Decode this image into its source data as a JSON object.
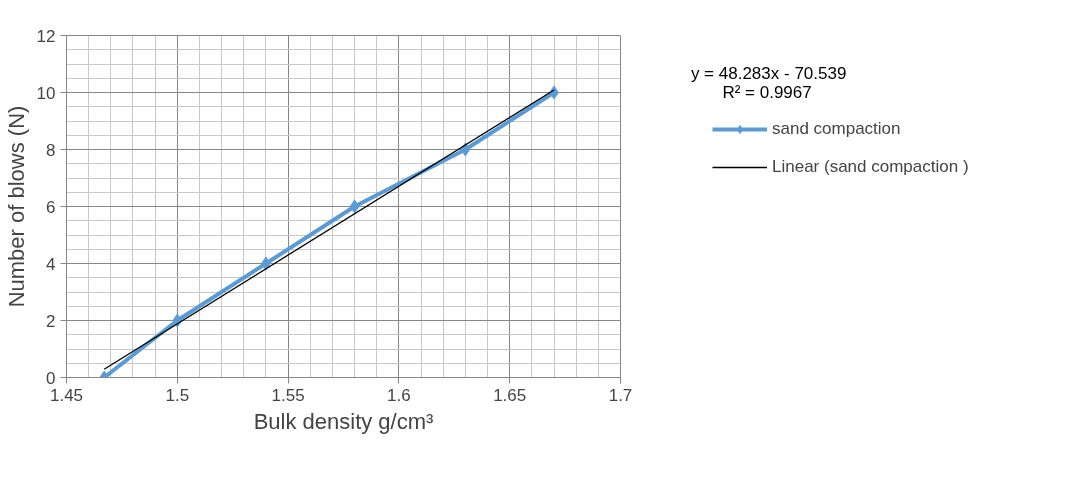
{
  "chart_data": {
    "type": "line",
    "xlabel": "Bulk density g/cm³",
    "ylabel": "Number of blows (N)",
    "xlim": [
      1.45,
      1.7
    ],
    "xticks": [
      1.45,
      1.5,
      1.55,
      1.6,
      1.65,
      1.7
    ],
    "ylim": [
      0,
      12
    ],
    "yticks": [
      0,
      2,
      4,
      6,
      8,
      10,
      12
    ],
    "grid": true,
    "legend": "right",
    "marker": "diamond",
    "series": [
      {
        "name": "sand compaction",
        "color": "#5b9bd5",
        "x": [
          1.467,
          1.5,
          1.54,
          1.58,
          1.63,
          1.67
        ],
        "values": [
          0,
          2,
          4,
          6,
          8,
          10
        ]
      },
      {
        "name": "Linear (sand compaction )",
        "type": "line",
        "marker": "none",
        "color": "#000000",
        "x": [
          1.467,
          1.67
        ],
        "values": [
          0.29,
          10.09
        ]
      }
    ],
    "annotations": [
      "y = 48.283x - 70.539",
      "R² = 0.9967"
    ]
  }
}
